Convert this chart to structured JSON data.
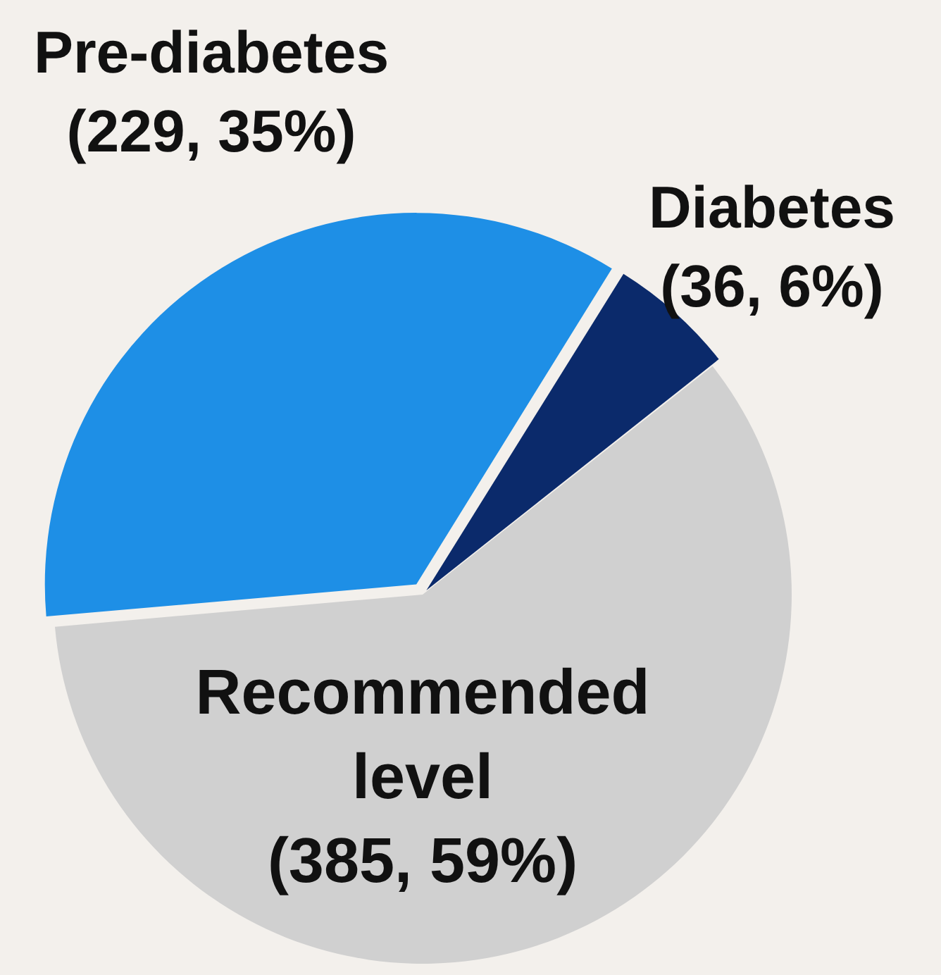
{
  "chart_data": {
    "type": "pie",
    "categories": [
      "Pre-diabetes",
      "Diabetes",
      "Recommended level"
    ],
    "values": [
      229,
      36,
      385
    ],
    "colors": [
      "#1e8fe6",
      "#0b2a6b",
      "#d0d0d0"
    ],
    "value_labels": [
      "(229, 35%)",
      "(36, 6%)",
      "(385, 59%)"
    ]
  }
}
